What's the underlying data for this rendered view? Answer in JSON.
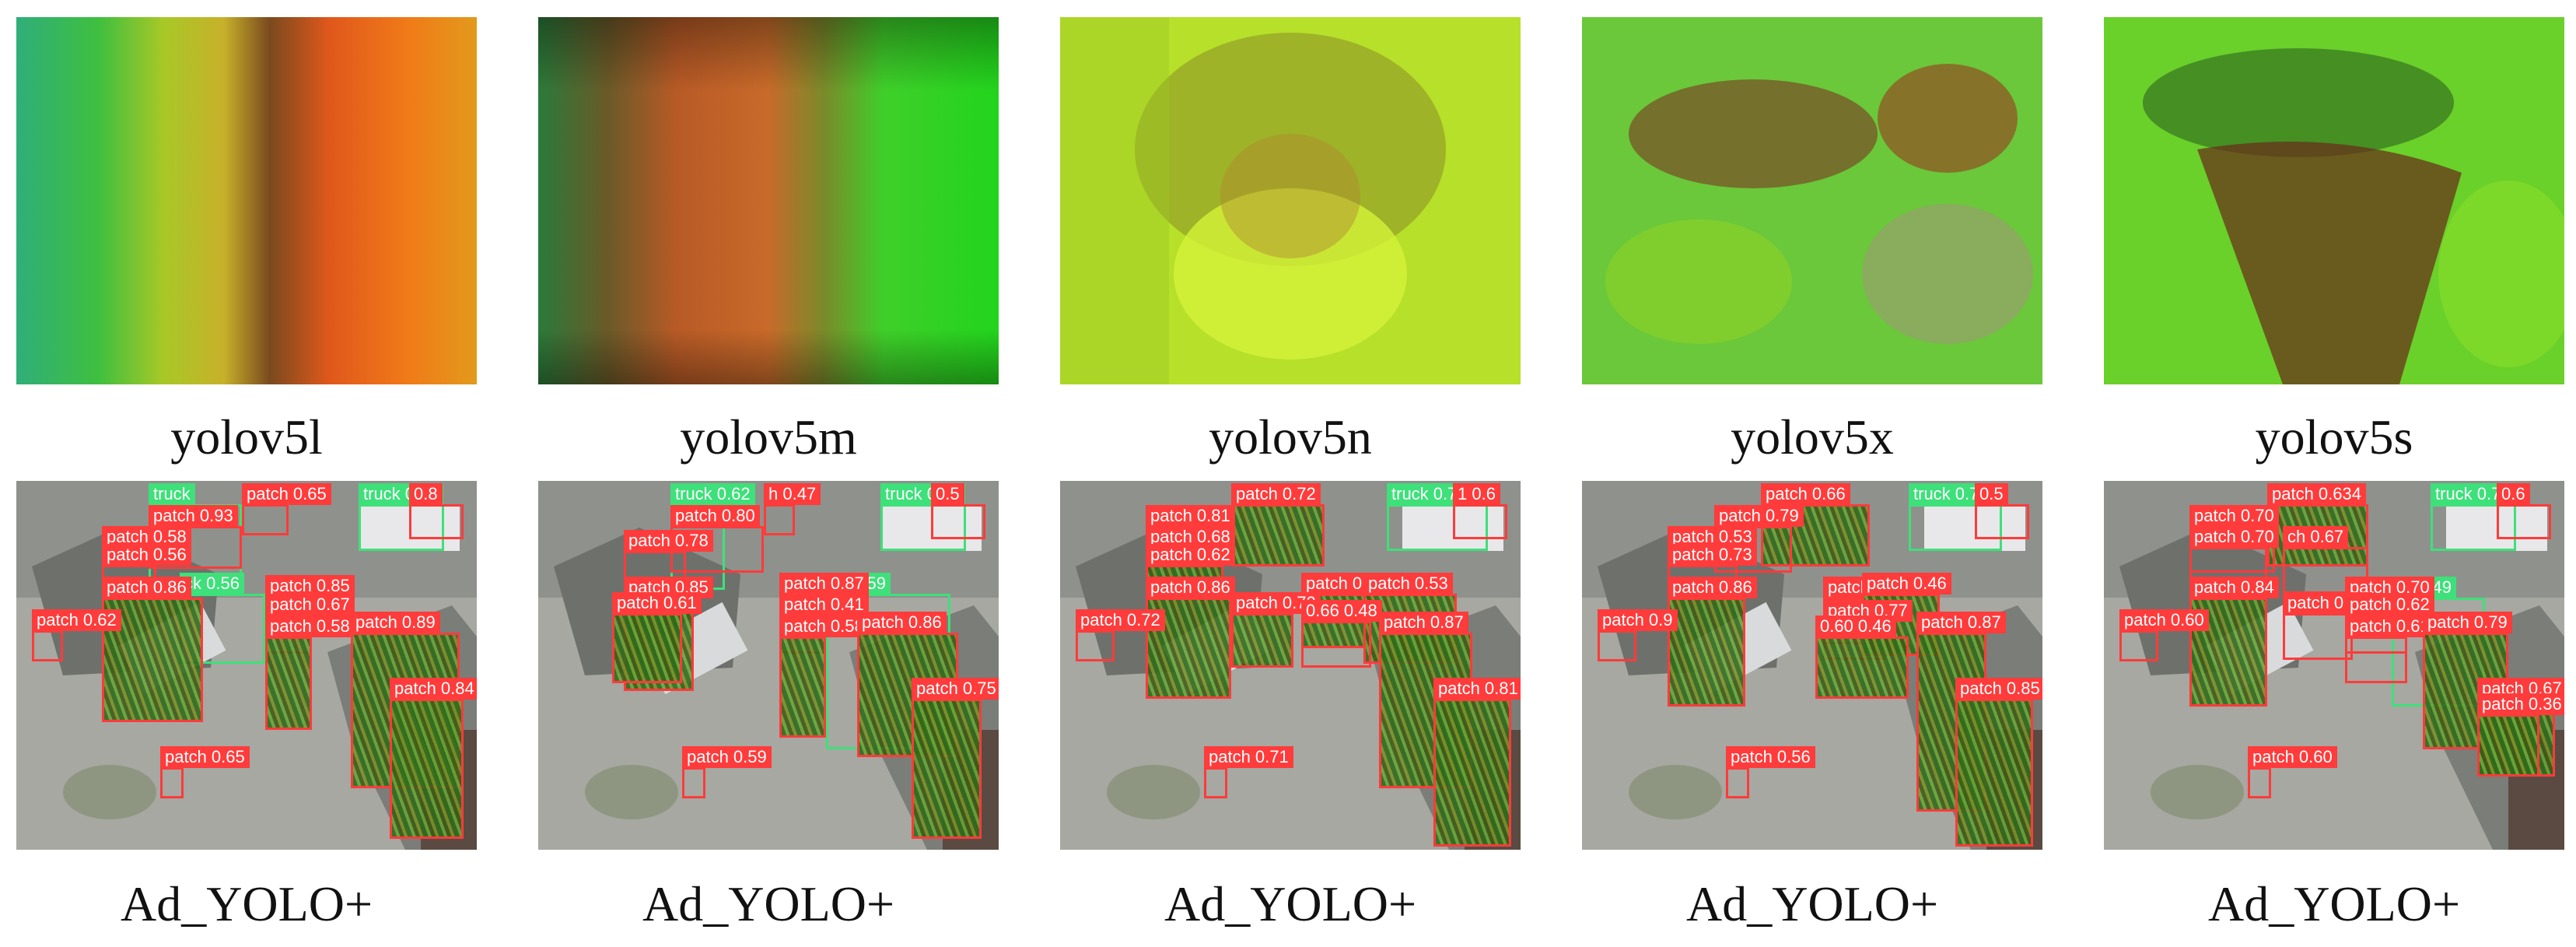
{
  "columns": [
    {
      "model_label": "yolov5l",
      "result_label": "Ad_YOLO+",
      "detections": [
        {
          "cls": "truck",
          "text": "truck"
        },
        {
          "cls": "patch",
          "text": "patch 0.65"
        },
        {
          "cls": "truck",
          "text": "truck 0.83"
        },
        {
          "cls": "patch",
          "text": "0.8"
        },
        {
          "cls": "patch",
          "text": "patch 0.93"
        },
        {
          "cls": "patch",
          "text": "patch 0.58"
        },
        {
          "cls": "patch",
          "text": "patch 0.56"
        },
        {
          "cls": "truck",
          "text": "ck 0.56"
        },
        {
          "cls": "patch",
          "text": "patch 0.86"
        },
        {
          "cls": "patch",
          "text": "patch 0.85"
        },
        {
          "cls": "patch",
          "text": "patch 0.62"
        },
        {
          "cls": "patch",
          "text": "patch 0.67"
        },
        {
          "cls": "patch",
          "text": "patch 0.58"
        },
        {
          "cls": "patch",
          "text": "patch 0.89"
        },
        {
          "cls": "patch",
          "text": "patch 0.84"
        },
        {
          "cls": "patch",
          "text": "patch 0.65"
        }
      ]
    },
    {
      "model_label": "yolov5m",
      "result_label": "Ad_YOLO+",
      "detections": [
        {
          "cls": "truck",
          "text": "truck 0.62"
        },
        {
          "cls": "patch",
          "text": "h 0.47"
        },
        {
          "cls": "truck",
          "text": "truck 0.79"
        },
        {
          "cls": "patch",
          "text": "0.5"
        },
        {
          "cls": "patch",
          "text": "patch 0.80"
        },
        {
          "cls": "patch",
          "text": "patch 0.78"
        },
        {
          "cls": "truck",
          "text": "ck 0.59"
        },
        {
          "cls": "patch",
          "text": "patch 0.85"
        },
        {
          "cls": "patch",
          "text": "patch 0.87"
        },
        {
          "cls": "patch",
          "text": "patch 0.61"
        },
        {
          "cls": "patch",
          "text": "patch 0.41"
        },
        {
          "cls": "patch",
          "text": "patch 0.58"
        },
        {
          "cls": "patch",
          "text": "patch 0.86"
        },
        {
          "cls": "patch",
          "text": "patch 0.75"
        },
        {
          "cls": "patch",
          "text": "patch 0.59"
        }
      ]
    },
    {
      "model_label": "yolov5n",
      "result_label": "Ad_YOLO+",
      "detections": [
        {
          "cls": "patch",
          "text": "patch 0.72"
        },
        {
          "cls": "truck",
          "text": "truck 0.79"
        },
        {
          "cls": "patch",
          "text": "1 0.6"
        },
        {
          "cls": "patch",
          "text": "patch 0.81"
        },
        {
          "cls": "patch",
          "text": "patch 0.68"
        },
        {
          "cls": "patch",
          "text": "patch 0.62"
        },
        {
          "cls": "patch",
          "text": "patch 0.86"
        },
        {
          "cls": "patch",
          "text": "patch 0.86"
        },
        {
          "cls": "patch",
          "text": "patch 0.53"
        },
        {
          "cls": "patch",
          "text": "patch 0.72"
        },
        {
          "cls": "patch",
          "text": "patch 0.72"
        },
        {
          "cls": "patch",
          "text": "0.66 0.48"
        },
        {
          "cls": "patch",
          "text": "patch 0.87"
        },
        {
          "cls": "patch",
          "text": "patch 0.81"
        },
        {
          "cls": "patch",
          "text": "patch 0.71"
        }
      ]
    },
    {
      "model_label": "yolov5x",
      "result_label": "Ad_YOLO+",
      "detections": [
        {
          "cls": "patch",
          "text": "patch 0.66"
        },
        {
          "cls": "truck",
          "text": "truck 0.78"
        },
        {
          "cls": "patch",
          "text": "0.5"
        },
        {
          "cls": "patch",
          "text": "patch 0.79"
        },
        {
          "cls": "patch",
          "text": "patch 0.53"
        },
        {
          "cls": "patch",
          "text": "patch 0.73"
        },
        {
          "cls": "patch",
          "text": "patch 0.86"
        },
        {
          "cls": "patch",
          "text": "patch 0.89"
        },
        {
          "cls": "patch",
          "text": "patch 0.46"
        },
        {
          "cls": "patch",
          "text": "patch 0.77"
        },
        {
          "cls": "patch",
          "text": "patch 0.9"
        },
        {
          "cls": "patch",
          "text": "0.60 0.46"
        },
        {
          "cls": "patch",
          "text": "patch 0.87"
        },
        {
          "cls": "patch",
          "text": "patch 0.85"
        },
        {
          "cls": "patch",
          "text": "patch 0.56"
        }
      ]
    },
    {
      "model_label": "yolov5s",
      "result_label": "Ad_YOLO+",
      "detections": [
        {
          "cls": "patch",
          "text": "patch 0.634"
        },
        {
          "cls": "truck",
          "text": "truck 0.78"
        },
        {
          "cls": "patch",
          "text": "0.6"
        },
        {
          "cls": "patch",
          "text": "patch 0.70"
        },
        {
          "cls": "patch",
          "text": "patch 0.70"
        },
        {
          "cls": "patch",
          "text": "ch 0.67"
        },
        {
          "cls": "patch",
          "text": "patch 0.84"
        },
        {
          "cls": "truck",
          "text": "ck 0.49"
        },
        {
          "cls": "patch",
          "text": "patch 0.70"
        },
        {
          "cls": "patch",
          "text": "patch 0.52"
        },
        {
          "cls": "patch",
          "text": "patch 0.62"
        },
        {
          "cls": "patch",
          "text": "patch 0.60"
        },
        {
          "cls": "patch",
          "text": "patch 0.61"
        },
        {
          "cls": "patch",
          "text": "patch 0.79"
        },
        {
          "cls": "patch",
          "text": "patch 0.67"
        },
        {
          "cls": "patch",
          "text": "patch 0.36"
        },
        {
          "cls": "patch",
          "text": "patch 0.60"
        }
      ]
    }
  ]
}
